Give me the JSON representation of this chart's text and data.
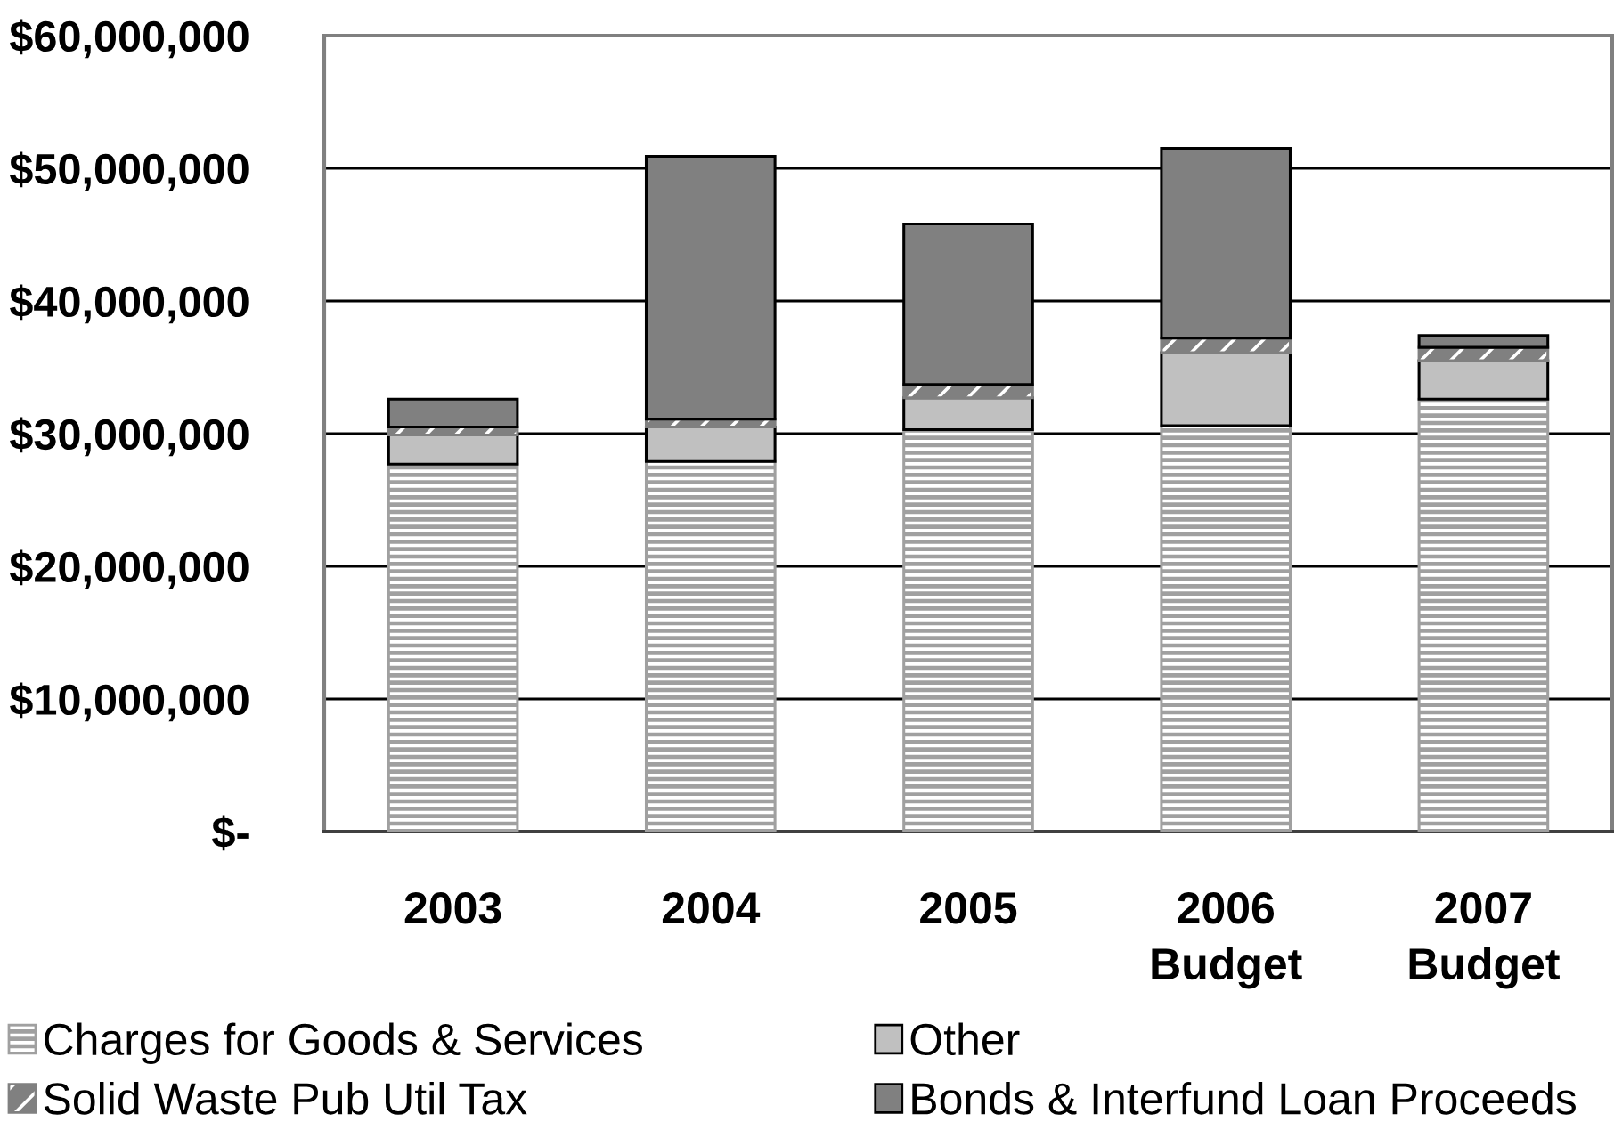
{
  "chart_data": {
    "type": "bar",
    "stacked": true,
    "categories": [
      "2003",
      "2004",
      "2005",
      "2006\nBudget",
      "2007\nBudget"
    ],
    "series": [
      {
        "name": "Charges for Goods & Services",
        "color": "#a0a0a0",
        "values": [
          27700000,
          27900000,
          30300000,
          30600000,
          32600000
        ]
      },
      {
        "name": "Other",
        "color": "#c0c0c0",
        "values": [
          2200000,
          2600000,
          2400000,
          5500000,
          2900000
        ]
      },
      {
        "name": "Solid Waste Pub Util Tax",
        "color": "#808080",
        "values": [
          600000,
          600000,
          1000000,
          1100000,
          1000000
        ]
      },
      {
        "name": "Bonds & Interfund Loan Proceeds",
        "color": "#808080",
        "values": [
          2100000,
          19800000,
          12100000,
          14300000,
          900000
        ]
      }
    ],
    "ylim": [
      0,
      60000000
    ],
    "yticks": [
      {
        "value": 0,
        "label": "$-"
      },
      {
        "value": 10000000,
        "label": "$10,000,000"
      },
      {
        "value": 20000000,
        "label": "$20,000,000"
      },
      {
        "value": 30000000,
        "label": "$30,000,000"
      },
      {
        "value": 40000000,
        "label": "$40,000,000"
      },
      {
        "value": 50000000,
        "label": "$50,000,000"
      },
      {
        "value": 60000000,
        "label": "$60,000,000"
      }
    ],
    "grid": "y",
    "legend": "bottom"
  }
}
